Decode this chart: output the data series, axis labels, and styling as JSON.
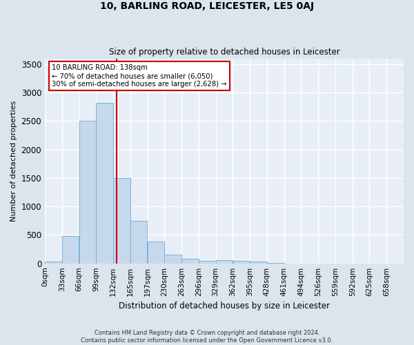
{
  "title": "10, BARLING ROAD, LEICESTER, LE5 0AJ",
  "subtitle": "Size of property relative to detached houses in Leicester",
  "xlabel": "Distribution of detached houses by size in Leicester",
  "ylabel": "Number of detached properties",
  "bar_color": "#c5d8ec",
  "bar_edge_color": "#7ab4d8",
  "background_color": "#e8eef5",
  "fig_background_color": "#dce4ee",
  "grid_color": "#ffffff",
  "categories": [
    "0sqm",
    "33sqm",
    "66sqm",
    "99sqm",
    "132sqm",
    "165sqm",
    "197sqm",
    "230sqm",
    "263sqm",
    "296sqm",
    "329sqm",
    "362sqm",
    "395sqm",
    "428sqm",
    "461sqm",
    "494sqm",
    "526sqm",
    "559sqm",
    "592sqm",
    "625sqm",
    "658sqm"
  ],
  "values": [
    30,
    480,
    2500,
    2820,
    1500,
    750,
    380,
    150,
    80,
    50,
    55,
    50,
    30,
    5,
    0,
    0,
    0,
    0,
    0,
    0,
    0
  ],
  "bin_width": 33,
  "property_line_x": 138,
  "property_line_color": "#cc0000",
  "annotation_text": "10 BARLING ROAD: 138sqm\n← 70% of detached houses are smaller (6,050)\n30% of semi-detached houses are larger (2,628) →",
  "annotation_box_color": "#ffffff",
  "annotation_box_edge_color": "#cc0000",
  "ylim": [
    0,
    3600
  ],
  "yticks": [
    0,
    500,
    1000,
    1500,
    2000,
    2500,
    3000,
    3500
  ],
  "footer_line1": "Contains HM Land Registry data © Crown copyright and database right 2024.",
  "footer_line2": "Contains public sector information licensed under the Open Government Licence v3.0."
}
